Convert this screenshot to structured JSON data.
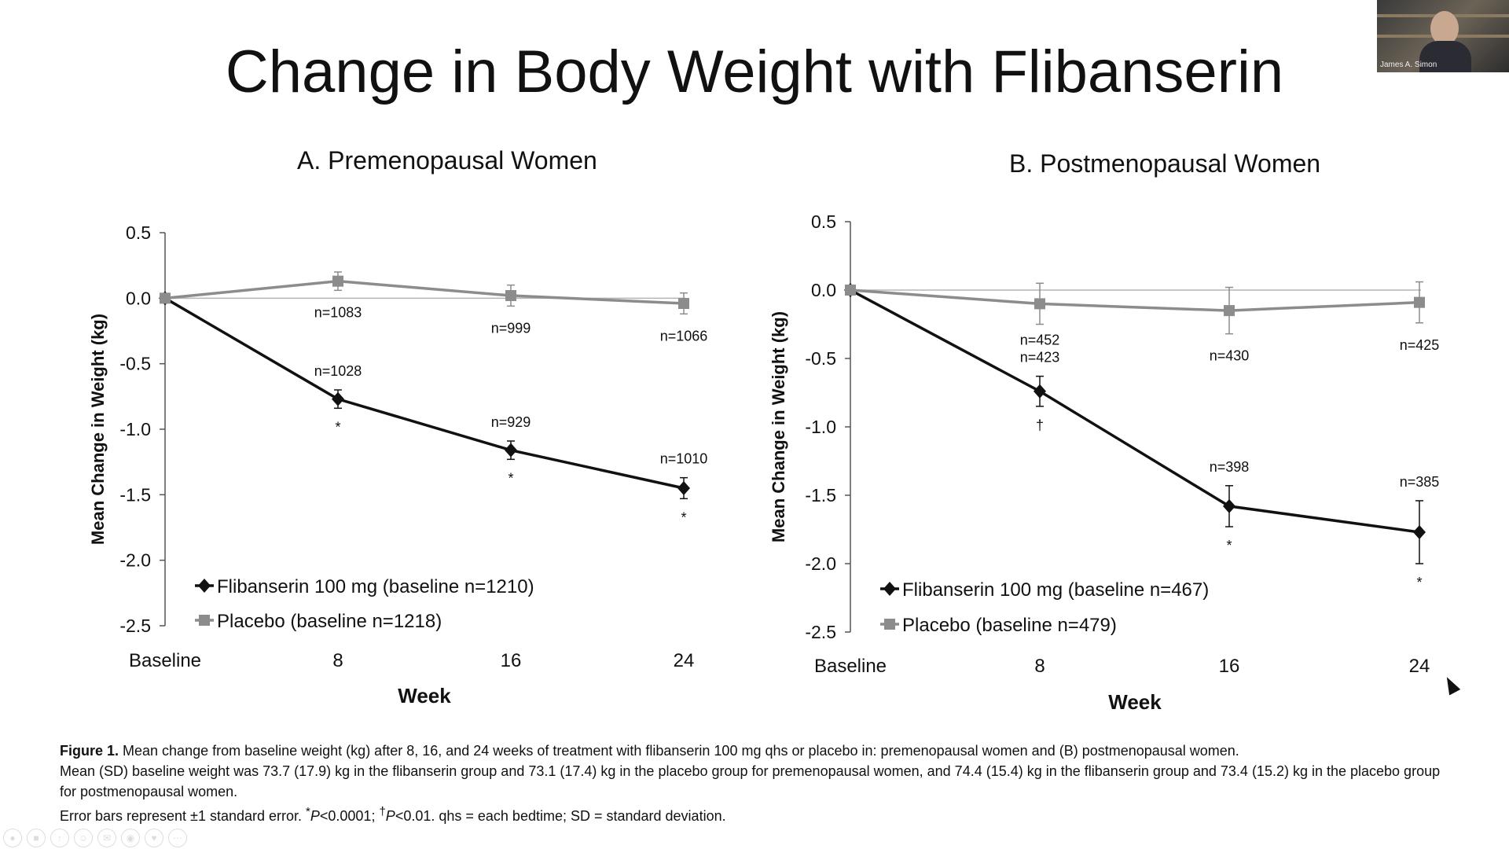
{
  "slide_title": "Change in Body Weight with Flibanserin",
  "colors": {
    "flibanserin": "#111111",
    "placebo": "#8c8c8c",
    "zero_line": "#b5b5b5"
  },
  "chart_data": [
    {
      "type": "line",
      "title": "A. Premenopausal Women",
      "xlabel": "Week",
      "ylabel": "Mean Change in Weight (kg)",
      "categories": [
        "Baseline",
        "8",
        "16",
        "24"
      ],
      "yticks": [
        "0.5",
        "0.0",
        "-0.5",
        "-1.0",
        "-1.5",
        "-2.0",
        "-2.5"
      ],
      "ylim": [
        -2.5,
        0.5
      ],
      "grid": false,
      "legend": "bottom-left",
      "series": [
        {
          "name": "Flibanserin 100 mg (baseline n=1210)",
          "marker": "diamond",
          "values": [
            0.0,
            -0.77,
            -1.16,
            -1.45
          ],
          "errors": [
            0,
            0.07,
            0.07,
            0.08
          ],
          "n_labels": [
            "",
            "n=1028",
            "n=929",
            "n=1010"
          ],
          "sig": [
            "",
            "*",
            "*",
            "*"
          ]
        },
        {
          "name": "Placebo (baseline n=1218)",
          "marker": "square",
          "values": [
            0.0,
            0.13,
            0.02,
            -0.04
          ],
          "errors": [
            0,
            0.07,
            0.08,
            0.08
          ],
          "n_labels": [
            "",
            "n=1083",
            "n=999",
            "n=1066"
          ],
          "sig": [
            "",
            "",
            "",
            ""
          ]
        }
      ]
    },
    {
      "type": "line",
      "title": "B. Postmenopausal Women",
      "xlabel": "Week",
      "ylabel": "Mean Change in Weight (kg)",
      "categories": [
        "Baseline",
        "8",
        "16",
        "24"
      ],
      "yticks": [
        "0.5",
        "0.0",
        "-0.5",
        "-1.0",
        "-1.5",
        "-2.0",
        "-2.5"
      ],
      "ylim": [
        -2.5,
        0.5
      ],
      "grid": false,
      "legend": "bottom-left",
      "series": [
        {
          "name": "Flibanserin 100 mg (baseline n=467)",
          "marker": "diamond",
          "values": [
            0.0,
            -0.74,
            -1.58,
            -1.77
          ],
          "errors": [
            0,
            0.11,
            0.15,
            0.23
          ],
          "n_labels": [
            "",
            "n=423",
            "n=398",
            "n=385"
          ],
          "sig": [
            "",
            "†",
            "*",
            "*"
          ]
        },
        {
          "name": "Placebo (baseline n=479)",
          "marker": "square",
          "values": [
            0.0,
            -0.1,
            -0.15,
            -0.09
          ],
          "errors": [
            0,
            0.15,
            0.17,
            0.15
          ],
          "n_labels": [
            "",
            "n=452",
            "n=430",
            "n=425"
          ],
          "sig": [
            "",
            "",
            "",
            ""
          ]
        }
      ]
    }
  ],
  "caption": {
    "line1_bold": "Figure 1.",
    "line1": " Mean change from baseline weight (kg) after 8, 16, and 24 weeks of treatment with flibanserin 100 mg qhs or placebo in: premenopausal women and (B) postmenopausal women.",
    "line2": "Mean (SD) baseline weight was 73.7 (17.9) kg in the flibanserin group and 73.1 (17.4) kg in the placebo group for premenopausal women, and 74.4 (15.4) kg in the flibanserin group and 73.4 (15.2) kg in the placebo group for postmenopausal women.",
    "line3a": "Error bars represent ±1 standard error. ",
    "star": "*",
    "p1": "P",
    "line3b": "<0.0001; ",
    "dagger": "†",
    "p2": "P",
    "line3c": "<0.01. qhs = each bedtime; SD = standard deviation."
  },
  "video": {
    "participant_name": "James A. Simon"
  },
  "toolbar_icons": [
    "mic-icon",
    "video-icon",
    "share-icon",
    "participants-icon",
    "chat-icon",
    "record-icon",
    "reactions-icon",
    "more-icon"
  ]
}
